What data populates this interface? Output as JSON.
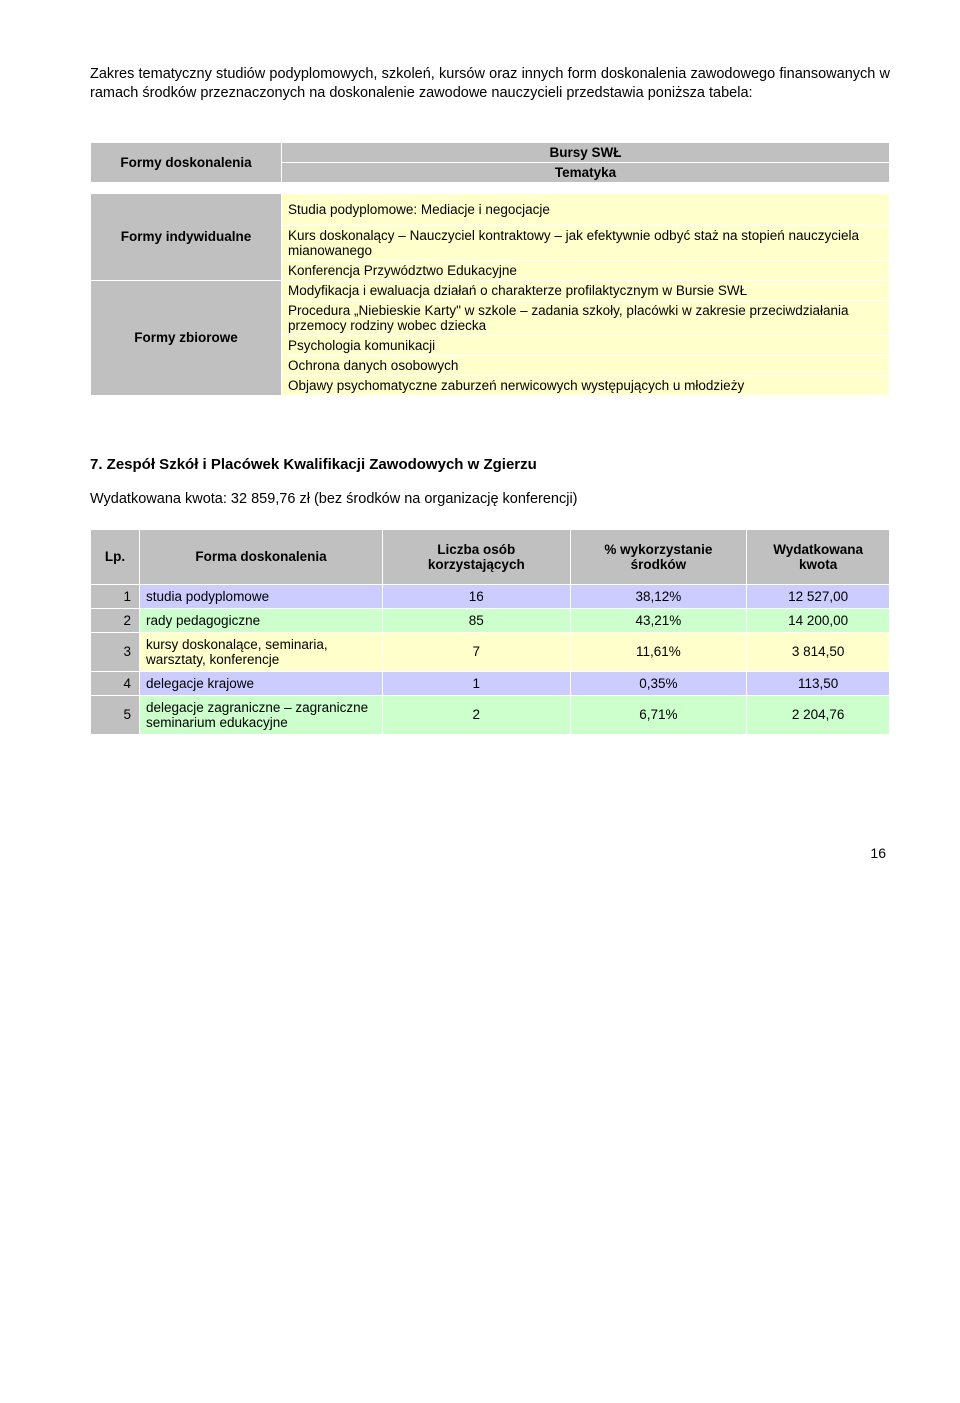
{
  "intro": "Zakres tematyczny studiów podyplomowych, szkoleń, kursów oraz innych form doskonalenia zawodowego finansowanych w ramach środków przeznaczonych na doskonalenie zawodowe nauczycieli przedstawia poniższa tabela:",
  "table1": {
    "col1_label": "Formy doskonalenia",
    "title": "Bursy SWŁ",
    "subtitle": "Tematyka",
    "row_indiv_label": "Formy indywidualne",
    "row_group_label": "Formy zbiorowe",
    "indiv_items": [
      "Studia podyplomowe: Mediacje i negocjacje",
      "Kurs doskonalący – Nauczyciel kontraktowy – jak efektywnie odbyć staż na stopień nauczyciela mianowanego",
      "Konferencja Przywództwo Edukacyjne"
    ],
    "group_items": [
      "Modyfikacja i ewaluacja działań o charakterze profilaktycznym w Bursie SWŁ",
      "Procedura „Niebieskie Karty\" w szkole – zadania szkoły, placówki w zakresie przeciwdziałania przemocy rodziny wobec dziecka",
      "Psychologia komunikacji",
      "Ochrona danych osobowych",
      "Objawy psychomatyczne zaburzeń nerwicowych występujących u młodzieży"
    ]
  },
  "section7": {
    "heading": "7.  Zespół Szkół i Placówek Kwalifikacji Zawodowych w Zgierzu",
    "spent": "Wydatkowana kwota: 32 859,76 zł (bez środków na organizację konferencji)",
    "headers": {
      "lp": "Lp.",
      "form": "Forma doskonalenia",
      "count": "Liczba osób korzystających",
      "pct": "% wykorzystanie środków",
      "amount": "Wydatkowana kwota"
    },
    "rows": [
      {
        "lp": "1",
        "form": "studia podyplomowe",
        "count": "16",
        "pct": "38,12%",
        "amount": "12 527,00",
        "cls": "row-blue"
      },
      {
        "lp": "2",
        "form": "rady pedagogiczne",
        "count": "85",
        "pct": "43,21%",
        "amount": "14 200,00",
        "cls": "row-green"
      },
      {
        "lp": "3",
        "form": "kursy doskonalące, seminaria, warsztaty, konferencje",
        "count": "7",
        "pct": "11,61%",
        "amount": "3 814,50",
        "cls": "row-yellow"
      },
      {
        "lp": "4",
        "form": "delegacje krajowe",
        "count": "1",
        "pct": "0,35%",
        "amount": "113,50",
        "cls": "row-blue"
      },
      {
        "lp": "5",
        "form": "delegacje zagraniczne – zagraniczne  seminarium edukacyjne",
        "count": "2",
        "pct": "6,71%",
        "amount": "2 204,76",
        "cls": "row-green"
      }
    ]
  },
  "page_number": "16"
}
